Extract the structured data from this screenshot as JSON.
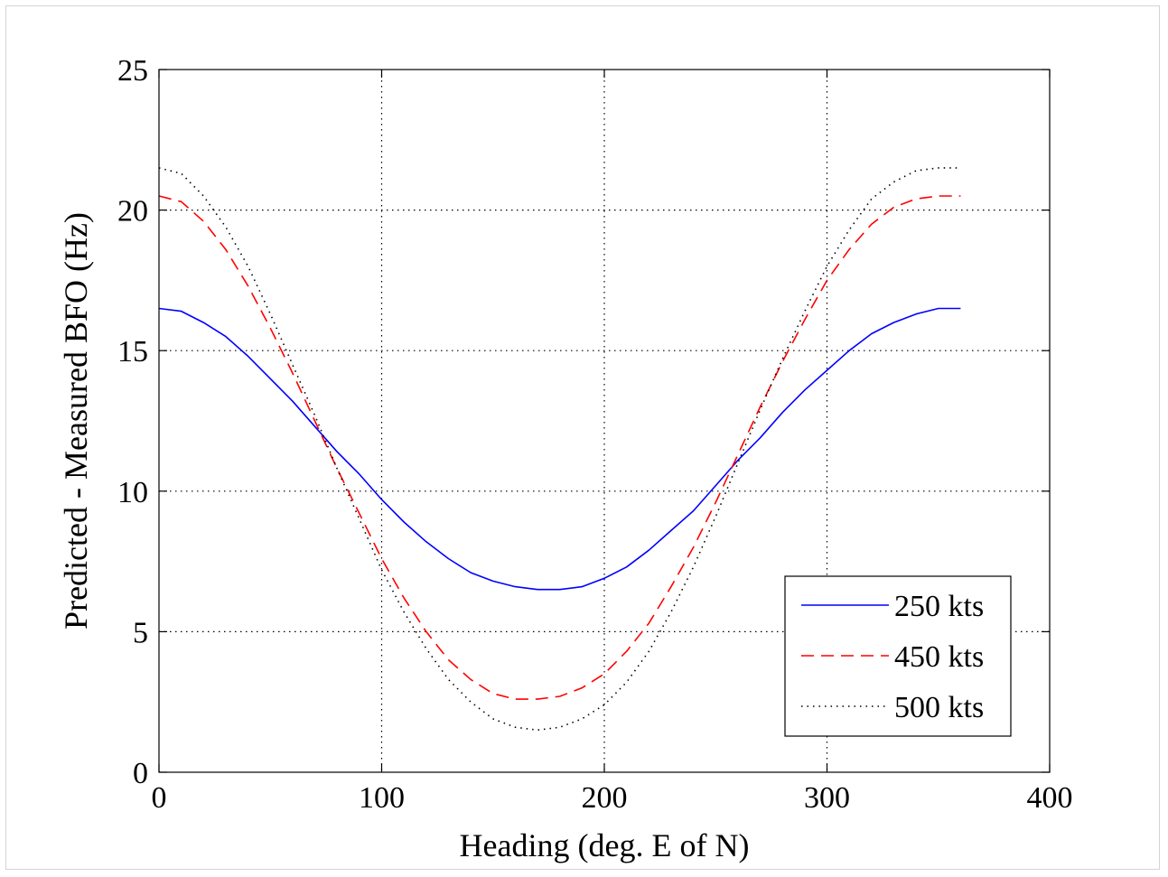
{
  "chart_data": {
    "type": "line",
    "title": "",
    "xlabel": "Heading (deg. E of N)",
    "ylabel": "Predicted - Measured BFO (Hz)",
    "xlim": [
      0,
      400
    ],
    "ylim": [
      0,
      25
    ],
    "xticks": [
      0,
      100,
      200,
      300,
      400
    ],
    "yticks": [
      0,
      5,
      10,
      15,
      20,
      25
    ],
    "grid": true,
    "legend": "bottom-right",
    "x": [
      0,
      10,
      20,
      30,
      40,
      50,
      60,
      70,
      80,
      90,
      100,
      110,
      120,
      130,
      140,
      150,
      160,
      170,
      180,
      190,
      200,
      210,
      220,
      230,
      240,
      250,
      260,
      270,
      280,
      290,
      300,
      310,
      320,
      330,
      340,
      350,
      360
    ],
    "series": [
      {
        "name": "250 kts",
        "color": "#0000ff",
        "dash": "solid",
        "values": [
          16.5,
          16.4,
          16.0,
          15.5,
          14.8,
          14.0,
          13.2,
          12.3,
          11.4,
          10.6,
          9.7,
          8.9,
          8.2,
          7.6,
          7.1,
          6.8,
          6.6,
          6.5,
          6.5,
          6.6,
          6.9,
          7.3,
          7.9,
          8.6,
          9.3,
          10.2,
          11.1,
          11.9,
          12.8,
          13.6,
          14.3,
          15.0,
          15.6,
          16.0,
          16.3,
          16.5,
          16.5
        ]
      },
      {
        "name": "450 kts",
        "color": "#ff0000",
        "dash": "dashed",
        "values": [
          20.5,
          20.3,
          19.6,
          18.6,
          17.3,
          15.8,
          14.2,
          12.5,
          10.8,
          9.2,
          7.6,
          6.2,
          5.0,
          4.0,
          3.3,
          2.8,
          2.6,
          2.6,
          2.7,
          3.0,
          3.5,
          4.3,
          5.3,
          6.6,
          8.0,
          9.6,
          11.3,
          13.0,
          14.6,
          16.1,
          17.5,
          18.6,
          19.5,
          20.1,
          20.4,
          20.5,
          20.5
        ]
      },
      {
        "name": "500 kts",
        "color": "#000000",
        "dash": "dotted",
        "values": [
          21.5,
          21.3,
          20.5,
          19.4,
          18.0,
          16.3,
          14.5,
          12.7,
          10.8,
          9.0,
          7.2,
          5.7,
          4.4,
          3.3,
          2.5,
          1.9,
          1.6,
          1.5,
          1.6,
          1.9,
          2.4,
          3.2,
          4.3,
          5.7,
          7.3,
          9.1,
          11.0,
          12.9,
          14.7,
          16.4,
          18.0,
          19.3,
          20.4,
          21.0,
          21.4,
          21.5,
          21.5
        ]
      }
    ]
  }
}
